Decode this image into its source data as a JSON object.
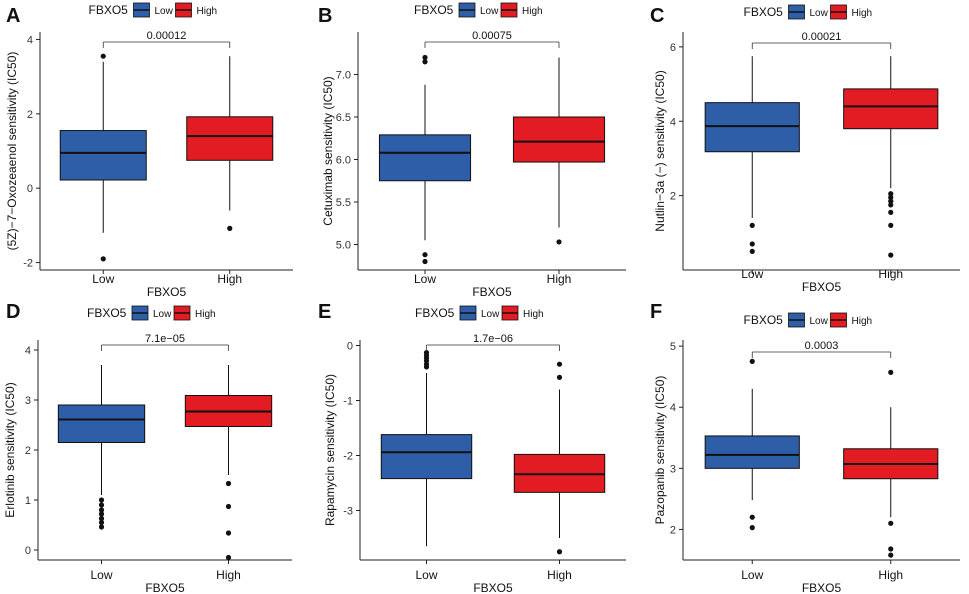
{
  "figure": {
    "legend_title": "FBXO5",
    "legend_items": [
      "Low",
      "High"
    ],
    "colors": {
      "Low": "#2f5ea9",
      "High": "#e31b23"
    }
  },
  "chart_data": [
    {
      "panel": "A",
      "type": "boxplot",
      "ylabel": "(5Z)−7−Oxozeaenol sensitivity (IC50)",
      "xlabel": "FBXO5",
      "categories": [
        "Low",
        "High"
      ],
      "ylim": [
        -2.2,
        4.2
      ],
      "yticks": [
        -2,
        0,
        2,
        4
      ],
      "p_value": "0.00012",
      "boxes": [
        {
          "group": "Low",
          "min": -1.2,
          "q1": 0.22,
          "median": 0.95,
          "q3": 1.55,
          "max": 3.4,
          "outliers": [
            3.55,
            -1.9
          ]
        },
        {
          "group": "High",
          "min": -0.6,
          "q1": 0.75,
          "median": 1.4,
          "q3": 1.92,
          "max": 3.55,
          "outliers": [
            -1.08
          ]
        }
      ]
    },
    {
      "panel": "B",
      "type": "boxplot",
      "ylabel": "Cetuximab sensitivity (IC50)",
      "xlabel": "FBXO5",
      "categories": [
        "Low",
        "High"
      ],
      "ylim": [
        4.7,
        7.5
      ],
      "yticks": [
        5.0,
        5.5,
        6.0,
        6.5,
        7.0
      ],
      "p_value": "0.00075",
      "boxes": [
        {
          "group": "Low",
          "min": 5.05,
          "q1": 5.75,
          "median": 6.08,
          "q3": 6.29,
          "max": 6.88,
          "outliers": [
            7.2,
            7.15,
            4.88,
            4.8
          ]
        },
        {
          "group": "High",
          "min": 5.2,
          "q1": 5.97,
          "median": 6.21,
          "q3": 6.5,
          "max": 7.2,
          "outliers": [
            5.03
          ]
        }
      ]
    },
    {
      "panel": "C",
      "type": "boxplot",
      "ylabel": "Nutlin−3a (−) sensitivity (IC50)",
      "xlabel": "FBXO5",
      "categories": [
        "Low",
        "High"
      ],
      "ylim": [
        0.0,
        6.4
      ],
      "yticks": [
        2,
        4,
        6
      ],
      "p_value": "0.00021",
      "boxes": [
        {
          "group": "Low",
          "min": 1.4,
          "q1": 3.18,
          "median": 3.87,
          "q3": 4.5,
          "max": 5.75,
          "outliers": [
            1.2,
            0.7,
            0.5
          ]
        },
        {
          "group": "High",
          "min": 2.2,
          "q1": 3.8,
          "median": 4.4,
          "q3": 4.87,
          "max": 5.75,
          "outliers": [
            2.05,
            1.95,
            1.85,
            1.75,
            1.55,
            1.2,
            0.4
          ]
        }
      ]
    },
    {
      "panel": "D",
      "type": "boxplot",
      "ylabel": "Erlotinib sensitivity (IC50)",
      "xlabel": "FBXO5",
      "categories": [
        "Low",
        "High"
      ],
      "ylim": [
        -0.2,
        4.2
      ],
      "yticks": [
        0,
        1,
        2,
        3,
        4
      ],
      "p_value": "7.1e−05",
      "boxes": [
        {
          "group": "Low",
          "min": 1.1,
          "q1": 2.15,
          "median": 2.61,
          "q3": 2.9,
          "max": 3.7,
          "outliers": [
            1.0,
            0.9,
            0.8,
            0.72,
            0.63,
            0.55,
            0.46
          ]
        },
        {
          "group": "High",
          "min": 1.5,
          "q1": 2.47,
          "median": 2.77,
          "q3": 3.09,
          "max": 3.7,
          "outliers": [
            1.33,
            0.87,
            0.34,
            -0.15
          ]
        }
      ]
    },
    {
      "panel": "E",
      "type": "boxplot",
      "ylabel": "Rapamycin sensitivity (IC50)",
      "xlabel": "FBXO5",
      "categories": [
        "Low",
        "High"
      ],
      "ylim": [
        -3.9,
        0.1
      ],
      "yticks": [
        -3,
        -2,
        -1,
        0
      ],
      "p_value": "1.7e−06",
      "boxes": [
        {
          "group": "Low",
          "min": -3.65,
          "q1": -2.42,
          "median": -1.94,
          "q3": -1.62,
          "max": -0.5,
          "outliers": [
            -0.13,
            -0.18,
            -0.23,
            -0.28,
            -0.34,
            -0.39
          ]
        },
        {
          "group": "High",
          "min": -3.5,
          "q1": -2.67,
          "median": -2.34,
          "q3": -1.98,
          "max": -0.8,
          "outliers": [
            -0.34,
            -0.58,
            -3.75
          ]
        }
      ]
    },
    {
      "panel": "F",
      "type": "boxplot",
      "ylabel": "Pazopanib sensitivity (IC50)",
      "xlabel": "FBXO5",
      "categories": [
        "Low",
        "High"
      ],
      "ylim": [
        1.5,
        5.1
      ],
      "yticks": [
        2,
        3,
        4,
        5
      ],
      "p_value": "0.0003",
      "boxes": [
        {
          "group": "Low",
          "min": 2.48,
          "q1": 3.0,
          "median": 3.22,
          "q3": 3.53,
          "max": 4.3,
          "outliers": [
            4.75,
            2.2,
            2.03
          ]
        },
        {
          "group": "High",
          "min": 2.2,
          "q1": 2.83,
          "median": 3.07,
          "q3": 3.32,
          "max": 4.0,
          "outliers": [
            4.57,
            2.1,
            1.68,
            1.58
          ]
        }
      ]
    }
  ]
}
